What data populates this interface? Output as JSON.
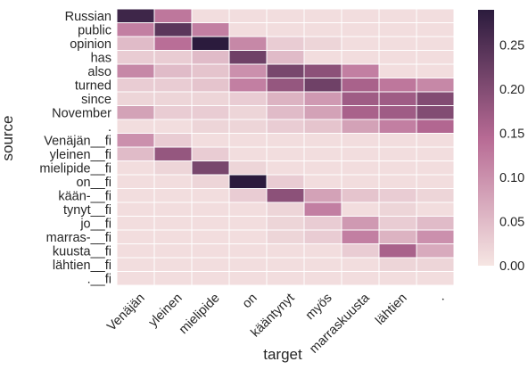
{
  "chart_data": {
    "type": "heatmap",
    "xlabel": "target",
    "ylabel": "source",
    "x_categories": [
      "Venäjän",
      "yleinen",
      "mielipide",
      "on",
      "kääntynyt",
      "myös",
      "marraskuusta",
      "lähtien",
      "."
    ],
    "y_categories": [
      "Russian",
      "public",
      "opinion",
      "has",
      "also",
      "turned",
      "since",
      "November",
      ".",
      "Venäjän__fi",
      "yleinen__fi",
      "mielipide__fi",
      "on__fi",
      "kään-__fi",
      "tynyt__fi",
      "jo__fi",
      "marras-__fi",
      "kuusta__fi",
      "lähtien__fi",
      ".__fi"
    ],
    "values": [
      [
        0.27,
        0.13,
        0.01,
        0.01,
        0.01,
        0.01,
        0.01,
        0.01,
        0.01
      ],
      [
        0.12,
        0.24,
        0.12,
        0.01,
        0.01,
        0.01,
        0.01,
        0.01,
        0.01
      ],
      [
        0.05,
        0.14,
        0.29,
        0.11,
        0.03,
        0.02,
        0.01,
        0.01,
        0.01
      ],
      [
        0.03,
        0.03,
        0.05,
        0.22,
        0.05,
        0.01,
        0.01,
        0.01,
        0.01
      ],
      [
        0.11,
        0.05,
        0.04,
        0.1,
        0.21,
        0.19,
        0.12,
        0.01,
        0.01
      ],
      [
        0.03,
        0.03,
        0.04,
        0.12,
        0.18,
        0.22,
        0.16,
        0.13,
        0.11
      ],
      [
        0.02,
        0.02,
        0.02,
        0.03,
        0.06,
        0.09,
        0.17,
        0.17,
        0.2
      ],
      [
        0.08,
        0.03,
        0.03,
        0.02,
        0.05,
        0.08,
        0.16,
        0.17,
        0.2
      ],
      [
        0.01,
        0.01,
        0.02,
        0.02,
        0.03,
        0.04,
        0.08,
        0.12,
        0.15
      ],
      [
        0.1,
        0.03,
        0.01,
        0.01,
        0.01,
        0.01,
        0.01,
        0.01,
        0.01
      ],
      [
        0.05,
        0.18,
        0.03,
        0.01,
        0.01,
        0.01,
        0.01,
        0.01,
        0.01
      ],
      [
        0.01,
        0.02,
        0.21,
        0.02,
        0.01,
        0.01,
        0.01,
        0.01,
        0.01
      ],
      [
        0.01,
        0.01,
        0.02,
        0.29,
        0.03,
        0.01,
        0.01,
        0.01,
        0.01
      ],
      [
        0.01,
        0.01,
        0.01,
        0.03,
        0.19,
        0.08,
        0.04,
        0.03,
        0.02
      ],
      [
        0.01,
        0.01,
        0.01,
        0.01,
        0.02,
        0.12,
        0.01,
        0.02,
        0.01
      ],
      [
        0.01,
        0.01,
        0.01,
        0.01,
        0.02,
        0.03,
        0.09,
        0.03,
        0.05
      ],
      [
        0.01,
        0.01,
        0.01,
        0.01,
        0.02,
        0.03,
        0.12,
        0.06,
        0.1
      ],
      [
        0.01,
        0.01,
        0.01,
        0.01,
        0.01,
        0.01,
        0.03,
        0.16,
        0.07
      ],
      [
        0.01,
        0.01,
        0.01,
        0.01,
        0.01,
        0.01,
        0.01,
        0.02,
        0.02
      ],
      [
        0.01,
        0.01,
        0.01,
        0.01,
        0.01,
        0.01,
        0.01,
        0.01,
        0.01
      ]
    ],
    "colorbar": {
      "min": 0.0,
      "max": 0.29,
      "ticks": [
        "0.00",
        "0.05",
        "0.10",
        "0.15",
        "0.20",
        "0.25"
      ],
      "low_color": "#f6e6e3",
      "mid_color": "#b76a94",
      "high_color": "#2b1b3d"
    },
    "grid_color": "#ffffff"
  }
}
